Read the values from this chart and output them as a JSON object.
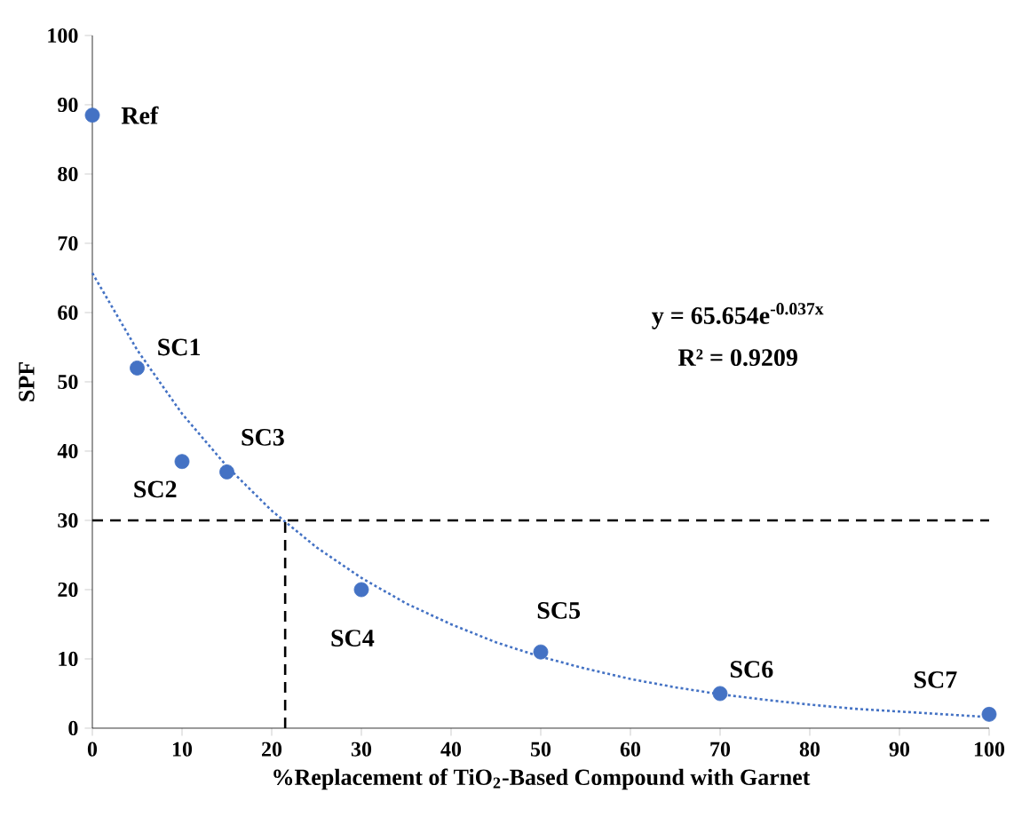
{
  "chart_data": {
    "type": "scatter",
    "xlabel": "%Replacement of TiO$_{2}$-Based Compound with Garnet",
    "ylabel": "SPF",
    "xlim": [
      0,
      100
    ],
    "ylim": [
      0,
      100
    ],
    "xticks": [
      0,
      10,
      20,
      30,
      40,
      50,
      60,
      70,
      80,
      90,
      100
    ],
    "yticks": [
      0,
      10,
      20,
      30,
      40,
      50,
      60,
      70,
      80,
      90,
      100
    ],
    "marker": "circle",
    "series": [
      {
        "type": "line",
        "color": "#4472c4",
        "line_style": "dotted",
        "marker": "none",
        "x": [
          0,
          5,
          10,
          15,
          20,
          25,
          30,
          35,
          40,
          45,
          50,
          55,
          60,
          65,
          70,
          75,
          80,
          85,
          90,
          95,
          100
        ],
        "values": [
          65.7,
          54.6,
          45.4,
          37.8,
          31.4,
          26.1,
          21.7,
          18.0,
          15.0,
          12.4,
          10.3,
          8.6,
          7.1,
          5.9,
          4.9,
          4.1,
          3.4,
          2.8,
          2.4,
          2.0,
          1.6
        ]
      },
      {
        "type": "line",
        "color": "#000000",
        "line_style": "dashed",
        "marker": "none",
        "x": [
          21.5,
          21.5
        ],
        "values": [
          0,
          30
        ]
      },
      {
        "color": "#4472c4",
        "x": [
          0,
          5,
          10,
          15,
          30,
          50,
          70,
          100
        ],
        "values": [
          88.5,
          52,
          38.5,
          37,
          20,
          11,
          5,
          2
        ]
      }
    ],
    "ref_lines": [
      {
        "axis": "y",
        "value": 30,
        "color": "#000000",
        "line_style": "dashed"
      }
    ],
    "annotations": [
      {
        "text": "Ref",
        "x": 0,
        "y": 88.5
      },
      {
        "text": "SC1",
        "x": 5,
        "y": 52
      },
      {
        "text": "SC2",
        "x": 10,
        "y": 38.5
      },
      {
        "text": "SC3",
        "x": 15,
        "y": 37
      },
      {
        "text": "SC4",
        "x": 30,
        "y": 20
      },
      {
        "text": "SC5",
        "x": 50,
        "y": 11
      },
      {
        "text": "SC6",
        "x": 70,
        "y": 5
      },
      {
        "text": "SC7",
        "x": 100,
        "y": 2
      },
      "y = 65.654e$^{-0.037x}$",
      "R² = 0.9209"
    ]
  }
}
